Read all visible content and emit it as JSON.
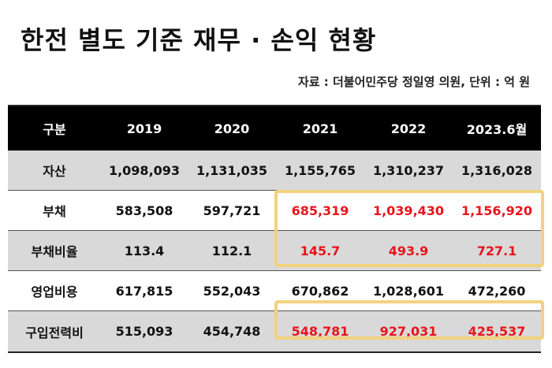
{
  "title": "한전 별도 기준 재무 · 손익 현황",
  "source": "자료 : 더불어민주당 정일영 의원, 단위 : 억 원",
  "table": {
    "headers": [
      "구분",
      "2019",
      "2020",
      "2021",
      "2022",
      "2023.6월"
    ],
    "rows": [
      {
        "label": "자산",
        "values": [
          "1,098,093",
          "1,131,035",
          "1,155,765",
          "1,310,237",
          "1,316,028"
        ]
      },
      {
        "label": "부채",
        "values": [
          "583,508",
          "597,721",
          "685,319",
          "1,039,430",
          "1,156,920"
        ]
      },
      {
        "label": "부채비율",
        "values": [
          "113.4",
          "112.1",
          "145.7",
          "493.9",
          "727.1"
        ]
      },
      {
        "label": "영업비용",
        "values": [
          "617,815",
          "552,043",
          "670,862",
          "1,028,601",
          "472,260"
        ]
      },
      {
        "label": "구입전력비",
        "values": [
          "515,093",
          "454,748",
          "548,781",
          "927,031",
          "425,537"
        ]
      }
    ]
  },
  "colors": {
    "header_bg": "#000000",
    "row_gray": "#d9d9d9",
    "highlight_text": "#e8141b",
    "highlight_border": "#f2d27c"
  }
}
